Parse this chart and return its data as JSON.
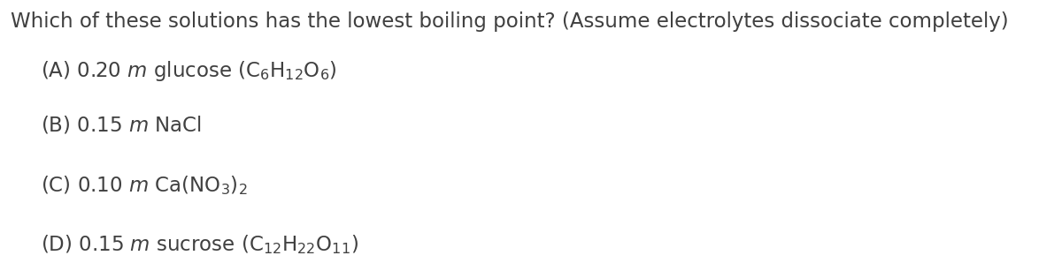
{
  "background_color": "#ffffff",
  "text_color": "#404040",
  "question": "Which of these solutions has the lowest boiling point? (Assume electrolytes dissociate completely)",
  "option_texts": [
    "(A) 0.20 $\\it{m}$ glucose (C$_6$H$_{12}$O$_6$)",
    "(B) 0.15 $\\it{m}$ NaCl",
    "(C) 0.10 $\\it{m}$ Ca(NO$_3$)$_2$",
    "(D) 0.15 $\\it{m}$ sucrose (C$_{12}$H$_{22}$O$_{11}$)"
  ],
  "question_fontsize": 16.5,
  "option_fontsize": 16.5,
  "fig_width": 12.0,
  "fig_height": 2.98,
  "dpi": 100
}
